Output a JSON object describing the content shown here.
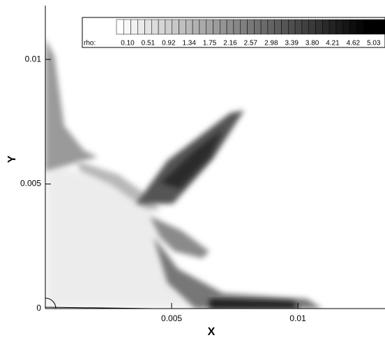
{
  "chart_data": {
    "type": "contour",
    "x_label": "X",
    "y_label": "Y",
    "xlim": [
      0,
      0.01345
    ],
    "ylim": [
      0,
      0.01216
    ],
    "xticks": [
      0.005,
      0.01
    ],
    "yticks": [
      0,
      0.005,
      0.01
    ],
    "colorbar": {
      "label": "rho:",
      "levels": [
        {
          "value": 0.1,
          "label": "0.10"
        },
        0.51,
        0.92,
        1.34,
        1.75,
        2.16,
        2.57,
        2.98,
        3.39,
        {
          "value": 3.8,
          "label": "3.80"
        },
        4.21,
        4.62,
        5.03
      ]
    }
  }
}
